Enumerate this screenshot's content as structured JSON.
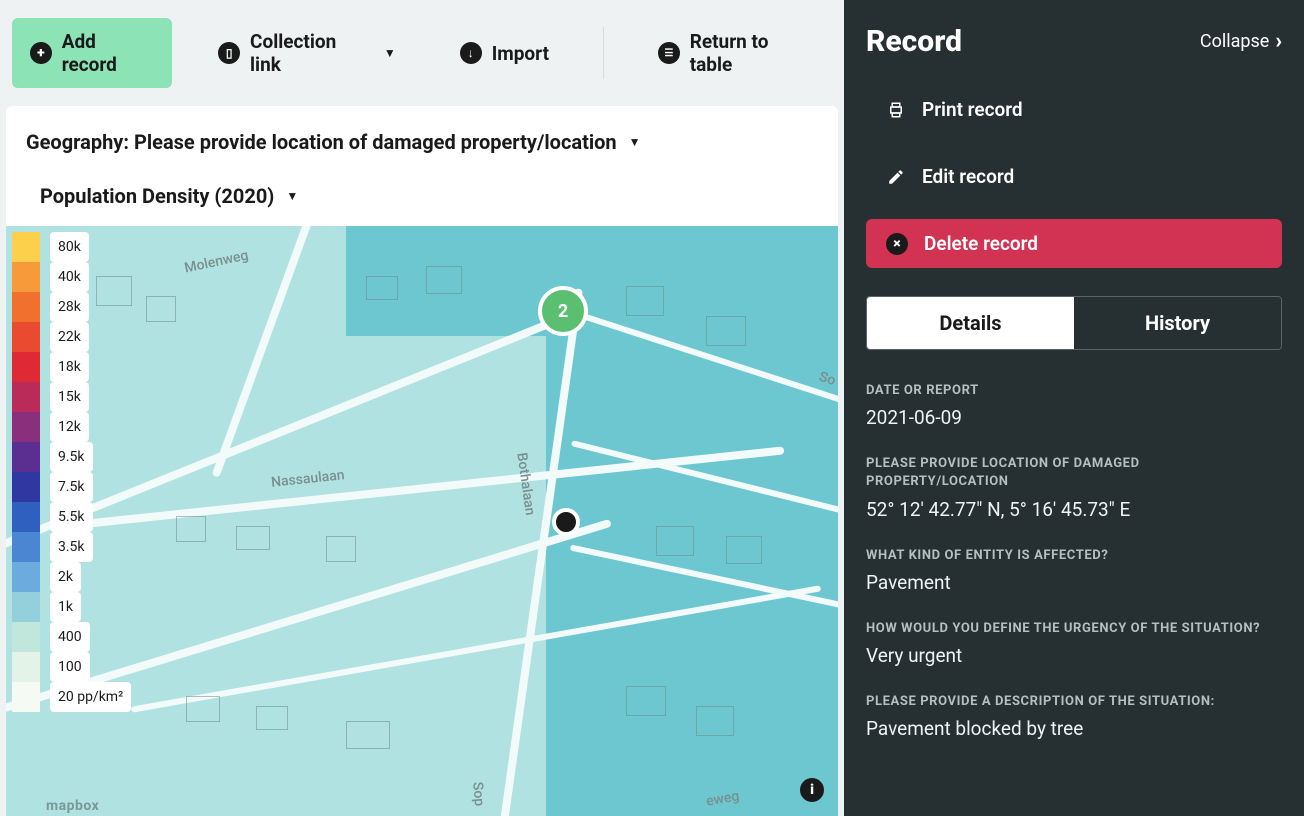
{
  "toolbar": {
    "add_record": "Add record",
    "collection_link": "Collection link",
    "import": "Import",
    "return_to_table": "Return to table"
  },
  "filters": {
    "geography_label": "Geography: Please provide location of damaged property/location",
    "layer_label": "Population Density (2020)"
  },
  "map": {
    "cluster_count": "2",
    "legend_unit": "20 pp/km²",
    "legend": [
      {
        "value": "80k",
        "color": "#fdd04b"
      },
      {
        "value": "40k",
        "color": "#f79a3a"
      },
      {
        "value": "28k",
        "color": "#f1702e"
      },
      {
        "value": "22k",
        "color": "#ea4a2f"
      },
      {
        "value": "18k",
        "color": "#df2935"
      },
      {
        "value": "15k",
        "color": "#ba2b59"
      },
      {
        "value": "12k",
        "color": "#8a2f7c"
      },
      {
        "value": "9.5k",
        "color": "#5b2e91"
      },
      {
        "value": "7.5k",
        "color": "#3037a0"
      },
      {
        "value": "5.5k",
        "color": "#2f5fbf"
      },
      {
        "value": "3.5k",
        "color": "#4a86d2"
      },
      {
        "value": "2k",
        "color": "#6cabde"
      },
      {
        "value": "1k",
        "color": "#94d0db"
      },
      {
        "value": "400",
        "color": "#c1e6dc"
      },
      {
        "value": "100",
        "color": "#e4f3e8"
      }
    ],
    "street_labels": {
      "molenweg": "Molenweg",
      "nassaulaan": "Nassaulaan",
      "bothalaan": "Bothalaan",
      "sop": "Sop",
      "eweg": "eweg",
      "so": "So"
    },
    "mapbox": "mapbox"
  },
  "panel": {
    "title": "Record",
    "collapse": "Collapse",
    "actions": {
      "print": "Print record",
      "edit": "Edit record",
      "delete": "Delete record"
    },
    "tabs": {
      "details": "Details",
      "history": "History"
    },
    "details": [
      {
        "label": "DATE OR REPORT",
        "value": "2021-06-09"
      },
      {
        "label": "PLEASE PROVIDE LOCATION OF DAMAGED PROPERTY/LOCATION",
        "value": "52° 12' 42.77\" N, 5° 16' 45.73\" E"
      },
      {
        "label": "WHAT KIND OF ENTITY IS AFFECTED?",
        "value": "Pavement"
      },
      {
        "label": "HOW WOULD YOU DEFINE THE URGENCY OF THE SITUATION?",
        "value": "Very urgent"
      },
      {
        "label": "PLEASE PROVIDE A DESCRIPTION OF THE SITUATION:",
        "value": "Pavement blocked by tree"
      }
    ]
  },
  "colors": {
    "accent": "#8ce3b5",
    "danger": "#d23352",
    "panel_bg": "#262f31",
    "map_bg": "#6cc7d1",
    "map_light": "#b1e2e2"
  }
}
